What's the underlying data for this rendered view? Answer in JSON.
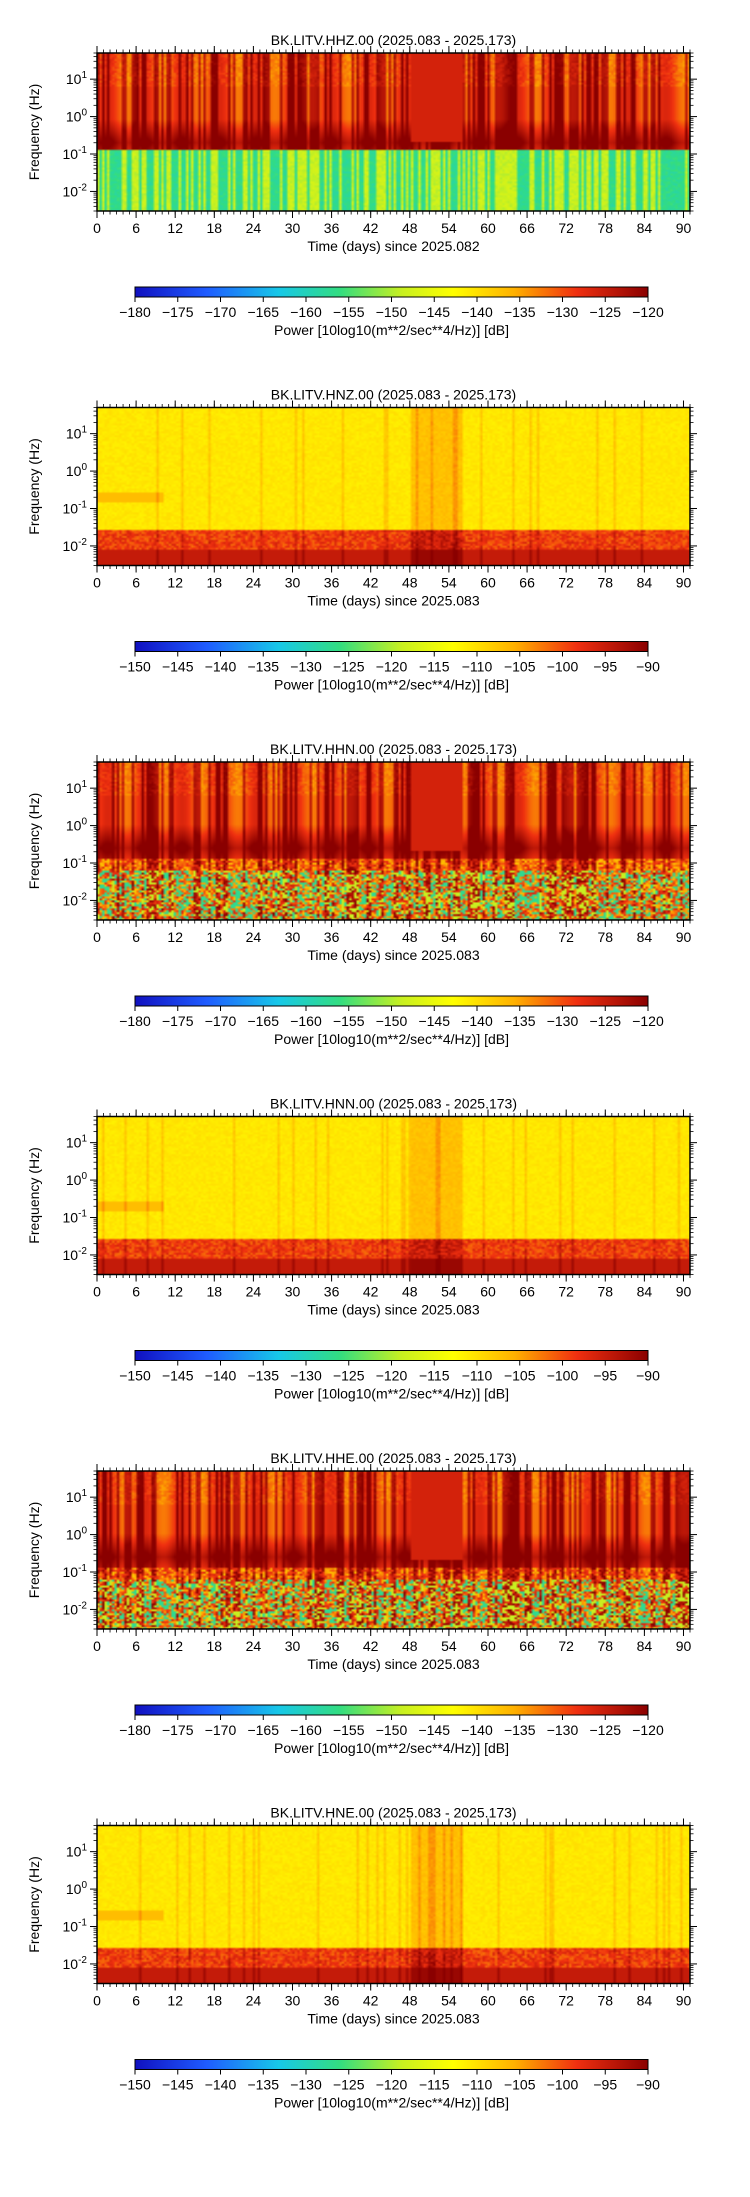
{
  "chart_data": [
    {
      "type": "heatmap",
      "title": "BK.LITV.HHZ.00 (2025.083 - 2025.173)",
      "xlabel": "Time (days) since 2025.082",
      "ylabel": "Frequency (Hz)",
      "x_ticks": [
        "0",
        "6",
        "12",
        "18",
        "24",
        "30",
        "36",
        "42",
        "48",
        "54",
        "60",
        "66",
        "72",
        "78",
        "84",
        "90"
      ],
      "y_ticks": [
        "10^1",
        "10^0",
        "10^-1",
        "10^-2"
      ],
      "xlim": [
        0,
        91
      ],
      "ylim_hz": [
        0.003,
        50
      ],
      "y_scale": "log",
      "colorbar": {
        "label": "Power [10log10(m**2/sec**4/Hz)] [dB]",
        "ticks": [
          "−180",
          "−175",
          "−170",
          "−165",
          "−160",
          "−155",
          "−150",
          "−145",
          "−140",
          "−135",
          "−130",
          "−125",
          "−120"
        ],
        "range": [
          -180,
          -120
        ],
        "colormap": "jet-like blue-cyan-green-yellow-red-darkred"
      },
      "profile": {
        "band_center_hz": 0.2,
        "low_freq_green": true,
        "low_freq_red": false,
        "streak_strength": "strong"
      }
    },
    {
      "type": "heatmap",
      "title": "BK.LITV.HNZ.00 (2025.083 - 2025.173)",
      "xlabel": "Time (days) since 2025.083",
      "ylabel": "Frequency (Hz)",
      "x_ticks": [
        "0",
        "6",
        "12",
        "18",
        "24",
        "30",
        "36",
        "42",
        "48",
        "54",
        "60",
        "66",
        "72",
        "78",
        "84",
        "90"
      ],
      "y_ticks": [
        "10^1",
        "10^0",
        "10^-1",
        "10^-2"
      ],
      "xlim": [
        0,
        91
      ],
      "ylim_hz": [
        0.003,
        50
      ],
      "y_scale": "log",
      "colorbar": {
        "label": "Power [10log10(m**2/sec**4/Hz)] [dB]",
        "ticks": [
          "−150",
          "−145",
          "−140",
          "−135",
          "−130",
          "−125",
          "−120",
          "−115",
          "−110",
          "−105",
          "−100",
          "−95",
          "−90"
        ],
        "range": [
          -150,
          -90
        ],
        "colormap": "jet-like blue-cyan-green-yellow-red-darkred"
      },
      "profile": {
        "band_center_hz": 0.2,
        "low_freq_green": false,
        "low_freq_red": true,
        "streak_strength": "weak"
      }
    },
    {
      "type": "heatmap",
      "title": "BK.LITV.HHN.00 (2025.083 - 2025.173)",
      "xlabel": "Time (days) since 2025.083",
      "ylabel": "Frequency (Hz)",
      "x_ticks": [
        "0",
        "6",
        "12",
        "18",
        "24",
        "30",
        "36",
        "42",
        "48",
        "54",
        "60",
        "66",
        "72",
        "78",
        "84",
        "90"
      ],
      "y_ticks": [
        "10^1",
        "10^0",
        "10^-1",
        "10^-2"
      ],
      "xlim": [
        0,
        91
      ],
      "ylim_hz": [
        0.003,
        50
      ],
      "y_scale": "log",
      "colorbar": {
        "label": "Power [10log10(m**2/sec**4/Hz)] [dB]",
        "ticks": [
          "−180",
          "−175",
          "−170",
          "−165",
          "−160",
          "−155",
          "−150",
          "−145",
          "−140",
          "−135",
          "−130",
          "−125",
          "−120"
        ],
        "range": [
          -180,
          -120
        ],
        "colormap": "jet-like blue-cyan-green-yellow-red-darkred"
      },
      "profile": {
        "band_center_hz": 0.25,
        "low_freq_green": false,
        "low_freq_red": false,
        "streak_strength": "strong"
      }
    },
    {
      "type": "heatmap",
      "title": "BK.LITV.HNN.00 (2025.083 - 2025.173)",
      "xlabel": "Time (days) since 2025.083",
      "ylabel": "Frequency (Hz)",
      "x_ticks": [
        "0",
        "6",
        "12",
        "18",
        "24",
        "30",
        "36",
        "42",
        "48",
        "54",
        "60",
        "66",
        "72",
        "78",
        "84",
        "90"
      ],
      "y_ticks": [
        "10^1",
        "10^0",
        "10^-1",
        "10^-2"
      ],
      "xlim": [
        0,
        91
      ],
      "ylim_hz": [
        0.003,
        50
      ],
      "y_scale": "log",
      "colorbar": {
        "label": "Power [10log10(m**2/sec**4/Hz)] [dB]",
        "ticks": [
          "−150",
          "−145",
          "−140",
          "−135",
          "−130",
          "−125",
          "−120",
          "−115",
          "−110",
          "−105",
          "−100",
          "−95",
          "−90"
        ],
        "range": [
          -150,
          -90
        ],
        "colormap": "jet-like blue-cyan-green-yellow-red-darkred"
      },
      "profile": {
        "band_center_hz": 0.2,
        "low_freq_green": false,
        "low_freq_red": true,
        "streak_strength": "weak"
      }
    },
    {
      "type": "heatmap",
      "title": "BK.LITV.HHE.00 (2025.083 - 2025.173)",
      "xlabel": "Time (days) since 2025.083",
      "ylabel": "Frequency (Hz)",
      "x_ticks": [
        "0",
        "6",
        "12",
        "18",
        "24",
        "30",
        "36",
        "42",
        "48",
        "54",
        "60",
        "66",
        "72",
        "78",
        "84",
        "90"
      ],
      "y_ticks": [
        "10^1",
        "10^0",
        "10^-1",
        "10^-2"
      ],
      "xlim": [
        0,
        91
      ],
      "ylim_hz": [
        0.003,
        50
      ],
      "y_scale": "log",
      "colorbar": {
        "label": "Power [10log10(m**2/sec**4/Hz)] [dB]",
        "ticks": [
          "−180",
          "−175",
          "−170",
          "−165",
          "−160",
          "−155",
          "−150",
          "−145",
          "−140",
          "−135",
          "−130",
          "−125",
          "−120"
        ],
        "range": [
          -180,
          -120
        ],
        "colormap": "jet-like blue-cyan-green-yellow-red-darkred"
      },
      "profile": {
        "band_center_hz": 0.25,
        "low_freq_green": false,
        "low_freq_red": false,
        "streak_strength": "strong"
      }
    },
    {
      "type": "heatmap",
      "title": "BK.LITV.HNE.00 (2025.083 - 2025.173)",
      "xlabel": "Time (days) since 2025.083",
      "ylabel": "Frequency (Hz)",
      "x_ticks": [
        "0",
        "6",
        "12",
        "18",
        "24",
        "30",
        "36",
        "42",
        "48",
        "54",
        "60",
        "66",
        "72",
        "78",
        "84",
        "90"
      ],
      "y_ticks": [
        "10^1",
        "10^0",
        "10^-1",
        "10^-2"
      ],
      "xlim": [
        0,
        91
      ],
      "ylim_hz": [
        0.003,
        50
      ],
      "y_scale": "log",
      "colorbar": {
        "label": "Power [10log10(m**2/sec**4/Hz)] [dB]",
        "ticks": [
          "−150",
          "−145",
          "−140",
          "−135",
          "−130",
          "−125",
          "−120",
          "−115",
          "−110",
          "−105",
          "−100",
          "−95",
          "−90"
        ],
        "range": [
          -150,
          -90
        ],
        "colormap": "jet-like blue-cyan-green-yellow-red-darkred"
      },
      "profile": {
        "band_center_hz": 0.2,
        "low_freq_green": false,
        "low_freq_red": true,
        "streak_strength": "weak"
      }
    }
  ]
}
